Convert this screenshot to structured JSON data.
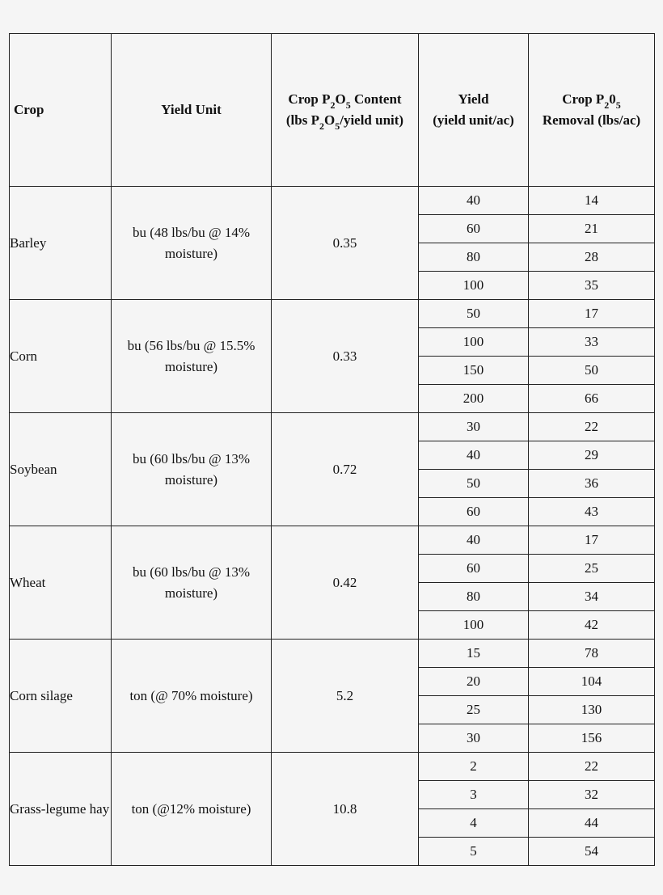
{
  "headers": {
    "crop": "Crop",
    "yield_unit": "Yield Unit",
    "content_a": "Crop P",
    "content_b": "2",
    "content_c": "O",
    "content_d": "5",
    "content_e": " Content",
    "content_f": "(lbs P",
    "content_g": "2",
    "content_h": "O",
    "content_i": "5",
    "content_j": "/yield unit)",
    "yield_a": "Yield",
    "yield_b": "(yield unit/ac)",
    "removal_a": "Crop P",
    "removal_b": "2",
    "removal_c": "0",
    "removal_d": "5",
    "removal_e": "Removal (lbs/ac)"
  },
  "crops": [
    {
      "name": "Barley",
      "unit": "bu (48 lbs/bu @ 14% moisture)",
      "content": "0.35",
      "rows": [
        {
          "yield": "40",
          "removal": "14"
        },
        {
          "yield": "60",
          "removal": "21"
        },
        {
          "yield": "80",
          "removal": "28"
        },
        {
          "yield": "100",
          "removal": "35"
        }
      ]
    },
    {
      "name": "Corn",
      "unit": "bu (56 lbs/bu @ 15.5% moisture)",
      "content": "0.33",
      "rows": [
        {
          "yield": "50",
          "removal": "17"
        },
        {
          "yield": "100",
          "removal": "33"
        },
        {
          "yield": "150",
          "removal": "50"
        },
        {
          "yield": "200",
          "removal": "66"
        }
      ]
    },
    {
      "name": "Soybean",
      "unit": "bu (60 lbs/bu @ 13% moisture)",
      "content": "0.72",
      "rows": [
        {
          "yield": "30",
          "removal": "22"
        },
        {
          "yield": "40",
          "removal": "29"
        },
        {
          "yield": "50",
          "removal": "36"
        },
        {
          "yield": "60",
          "removal": "43"
        }
      ]
    },
    {
      "name": "Wheat",
      "unit": "bu (60 lbs/bu @ 13% moisture)",
      "content": "0.42",
      "rows": [
        {
          "yield": "40",
          "removal": "17"
        },
        {
          "yield": "60",
          "removal": "25"
        },
        {
          "yield": "80",
          "removal": "34"
        },
        {
          "yield": "100",
          "removal": "42"
        }
      ]
    },
    {
      "name": "Corn silage",
      "unit": "ton (@ 70% moisture)",
      "content": "5.2",
      "rows": [
        {
          "yield": "15",
          "removal": "78"
        },
        {
          "yield": "20",
          "removal": "104"
        },
        {
          "yield": "25",
          "removal": "130"
        },
        {
          "yield": "30",
          "removal": "156"
        }
      ]
    },
    {
      "name": "Grass-legume hay",
      "unit": "ton (@12% moisture)",
      "content": "10.8",
      "rows": [
        {
          "yield": "2",
          "removal": "22"
        },
        {
          "yield": "3",
          "removal": "32"
        },
        {
          "yield": "4",
          "removal": "44"
        },
        {
          "yield": "5",
          "removal": "54"
        }
      ]
    }
  ]
}
